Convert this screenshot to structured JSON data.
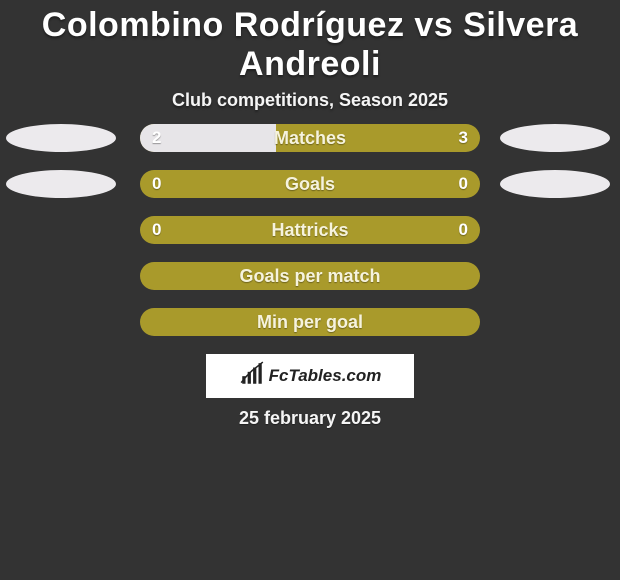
{
  "colors": {
    "background": "#333333",
    "title": "#ffffff",
    "subtitle": "#f5f5f5",
    "bar_track": "#a99a2b",
    "bar_fill_left": "#e7e5e8",
    "bar_fill_right": "#e7e5e8",
    "bar_label": "#f6f3dd",
    "bar_value": "#ffffff",
    "player_oval": "#eceaed",
    "brand_bg": "#ffffff",
    "brand_text": "#222222",
    "date": "#f5f5f5"
  },
  "typography": {
    "title_size": 34,
    "subtitle_size": 18,
    "bar_label_size": 18,
    "bar_value_size": 17,
    "brand_size": 17,
    "date_size": 18
  },
  "header": {
    "title": "Colombino Rodríguez vs Silvera Andreoli",
    "subtitle": "Club competitions, Season 2025"
  },
  "stats": [
    {
      "label": "Matches",
      "left_value": "2",
      "right_value": "3",
      "left_fill_pct": 40,
      "right_fill_pct": 0,
      "show_left_oval": true,
      "show_right_oval": true
    },
    {
      "label": "Goals",
      "left_value": "0",
      "right_value": "0",
      "left_fill_pct": 0,
      "right_fill_pct": 0,
      "show_left_oval": true,
      "show_right_oval": true
    },
    {
      "label": "Hattricks",
      "left_value": "0",
      "right_value": "0",
      "left_fill_pct": 0,
      "right_fill_pct": 0,
      "show_left_oval": false,
      "show_right_oval": false
    },
    {
      "label": "Goals per match",
      "left_value": "",
      "right_value": "",
      "left_fill_pct": 0,
      "right_fill_pct": 0,
      "show_left_oval": false,
      "show_right_oval": false
    },
    {
      "label": "Min per goal",
      "left_value": "",
      "right_value": "",
      "left_fill_pct": 0,
      "right_fill_pct": 0,
      "show_left_oval": false,
      "show_right_oval": false
    }
  ],
  "brand": {
    "text": "FcTables.com",
    "icon": "bar-chart-icon"
  },
  "date": "25 february 2025"
}
